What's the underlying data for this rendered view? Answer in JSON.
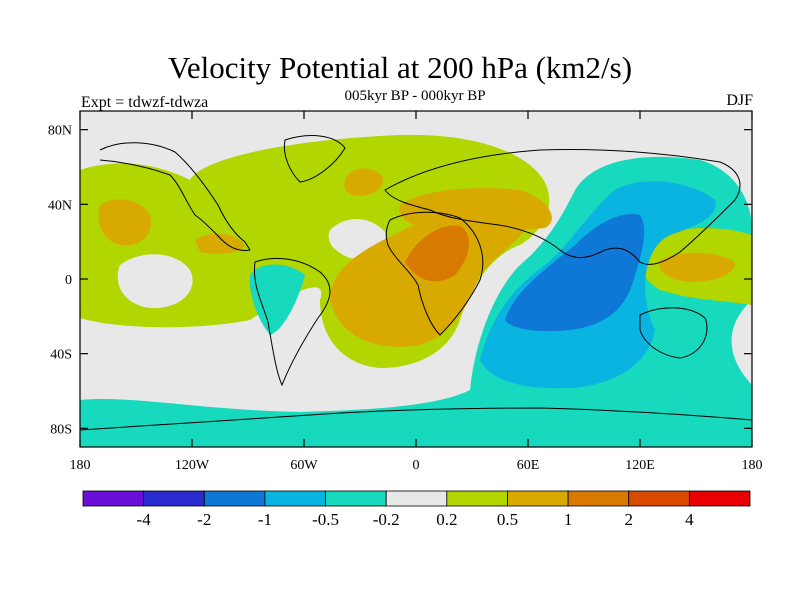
{
  "title": "Velocity Potential at 200 hPa (km2/s)",
  "subtitle": "005kyr BP - 000kyr BP",
  "left_label": "Expt = tdwzf-tdwza",
  "right_label": "DJF",
  "map": {
    "projection": "equirectangular",
    "lon_range": [
      -180,
      180
    ],
    "lat_range": [
      -90,
      90
    ],
    "lat_ticks": [
      {
        "value": 80,
        "label": "80N"
      },
      {
        "value": 40,
        "label": "40N"
      },
      {
        "value": 0,
        "label": "0"
      },
      {
        "value": -40,
        "label": "40S"
      },
      {
        "value": -80,
        "label": "80S"
      }
    ],
    "lon_ticks": [
      {
        "value": -180,
        "label": "180"
      },
      {
        "value": -120,
        "label": "120W"
      },
      {
        "value": -60,
        "label": "60W"
      },
      {
        "value": 0,
        "label": "0"
      },
      {
        "value": 60,
        "label": "60E"
      },
      {
        "value": 120,
        "label": "120E"
      },
      {
        "value": 180,
        "label": "180"
      }
    ]
  },
  "colorbar": {
    "colors": [
      "#6a0fd8",
      "#2a2cd0",
      "#0f78d6",
      "#0ab4e0",
      "#17d9be",
      "#e8e8e8",
      "#b2d600",
      "#d8aa00",
      "#d87a00",
      "#d84a00",
      "#e80000"
    ],
    "labels": [
      "-4",
      "-2",
      "-1",
      "-0.5",
      "-0.2",
      "0.2",
      "0.5",
      "1",
      "2",
      "4"
    ]
  },
  "field_colors": {
    "neutral": "#e8e8e8",
    "weak_pos": "#b2d600",
    "mod_pos": "#d8aa00",
    "strong_pos": "#d87a00",
    "weak_neg": "#17d9be",
    "mod_neg": "#0ab4e0",
    "strong_neg": "#0f78d6"
  }
}
